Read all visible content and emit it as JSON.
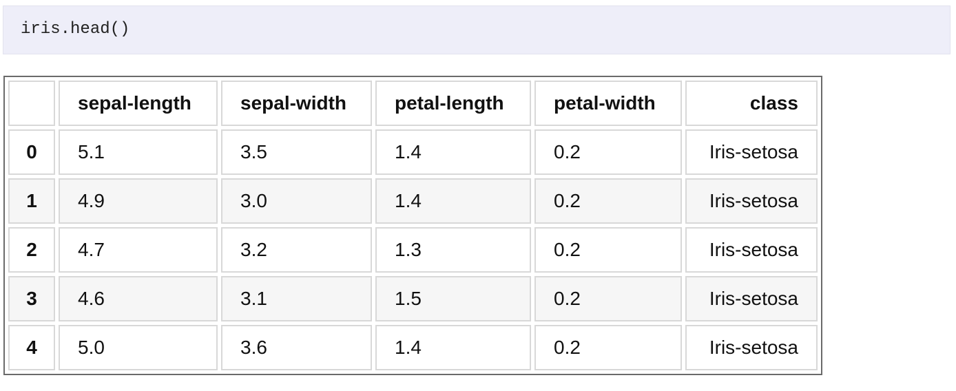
{
  "code": "iris.head()",
  "table": {
    "columns": [
      "",
      "sepal-length",
      "sepal-width",
      "petal-length",
      "petal-width",
      "class"
    ],
    "rows": [
      [
        "0",
        "5.1",
        "3.5",
        "1.4",
        "0.2",
        "Iris-setosa"
      ],
      [
        "1",
        "4.9",
        "3.0",
        "1.4",
        "0.2",
        "Iris-setosa"
      ],
      [
        "2",
        "4.7",
        "3.2",
        "1.3",
        "0.2",
        "Iris-setosa"
      ],
      [
        "3",
        "4.6",
        "3.1",
        "1.5",
        "0.2",
        "Iris-setosa"
      ],
      [
        "4",
        "5.0",
        "3.6",
        "1.4",
        "0.2",
        "Iris-setosa"
      ]
    ]
  }
}
